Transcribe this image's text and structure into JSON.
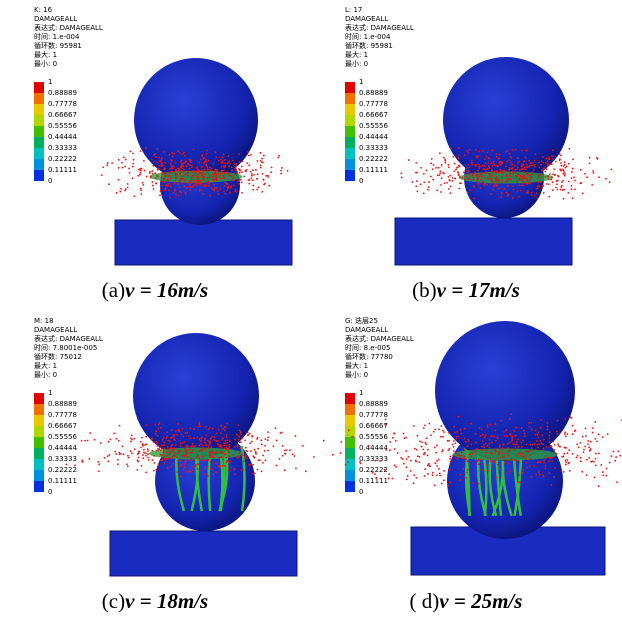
{
  "legend_labels": [
    "1",
    "0.88889",
    "0.77778",
    "0.66667",
    "0.55556",
    "0.44444",
    "0.33333",
    "0.22222",
    "0.11111",
    "0"
  ],
  "panels": [
    {
      "header": [
        "K: 16",
        "DAMAGEALL",
        "表达式: DAMAGEALL",
        "时间: 1.e-004",
        "循环数: 95981",
        "最大: 1",
        "最小: 0"
      ],
      "caption_label": "(a)",
      "caption_formula": "v = 16m/s"
    },
    {
      "header": [
        "L: 17",
        "DAMAGEALL",
        "表达式: DAMAGEALL",
        "时间: 1.e-004",
        "循环数: 95981",
        "最大: 1",
        "最小: 0"
      ],
      "caption_label": "(b)",
      "caption_formula": "v = 17m/s"
    },
    {
      "header": [
        "M: 18",
        "DAMAGEALL",
        "表达式: DAMAGEALL",
        "时间: 7.8001e-005",
        "循环数: 75012",
        "最大: 1",
        "最小: 0"
      ],
      "caption_label": "(c)",
      "caption_formula": "v = 18m/s"
    },
    {
      "header": [
        "G: 迭层25",
        "DAMAGEALL",
        "表达式: DAMAGEALL",
        "时间: 8.e-005",
        "循环数: 77780",
        "最大: 1",
        "最小: 0"
      ],
      "caption_label": "( d)",
      "caption_formula": "v = 25m/s"
    }
  ]
}
